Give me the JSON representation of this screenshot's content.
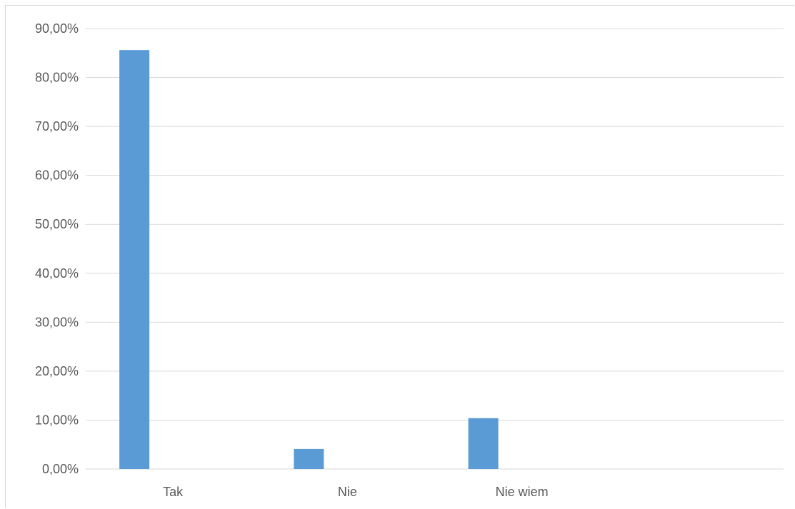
{
  "chart_data": {
    "type": "bar",
    "categories": [
      "Tak",
      "Nie",
      "Nie wiem",
      ""
    ],
    "series": [
      {
        "values": [
          85.6,
          4.1,
          10.4,
          null
        ],
        "color": "#5b9bd5"
      }
    ],
    "ylim": [
      0,
      90
    ],
    "ytick_step": 10,
    "ytick_labels": [
      "0,00%",
      "10,00%",
      "20,00%",
      "30,00%",
      "40,00%",
      "50,00%",
      "60,00%",
      "70,00%",
      "80,00%",
      "90,00%"
    ],
    "grid": true,
    "legend": "none",
    "title": "",
    "xlabel": "",
    "ylabel": ""
  }
}
